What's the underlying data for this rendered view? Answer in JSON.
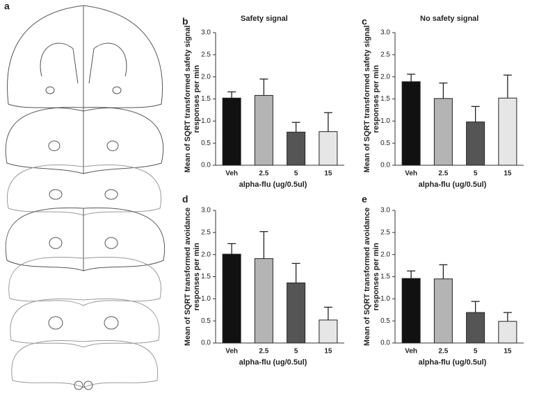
{
  "panel_a": {
    "label": "a"
  },
  "chart_data": [
    {
      "type": "bar",
      "panel_label": "b",
      "title": "Safety signal",
      "y_label": [
        "Mean of SQRT transformed safety signal",
        "responses per min"
      ],
      "x_label": "alpha-flu (ug/0.5ul)",
      "categories": [
        "Veh",
        "2.5",
        "5",
        "15"
      ],
      "values": [
        1.52,
        1.58,
        0.75,
        0.76
      ],
      "errors": [
        0.14,
        0.37,
        0.22,
        0.43
      ],
      "colors": [
        "#111111",
        "#b4b4b4",
        "#555555",
        "#e6e6e6"
      ],
      "ylim": [
        0,
        3
      ],
      "yticks": [
        {
          "value": 0,
          "label": "0.0"
        },
        0.5,
        {
          "value": 1,
          "label": "1.0"
        },
        1.5,
        {
          "value": 2,
          "label": "2.0"
        },
        2.5,
        {
          "value": 3,
          "label": "3.0"
        }
      ]
    },
    {
      "type": "bar",
      "panel_label": "c",
      "title": "No safety signal",
      "y_label": [
        "Mean of SQRT transformed safety signal",
        "responses per min"
      ],
      "x_label": "alpha-flu (ug/0.5ul)",
      "categories": [
        "Veh",
        "2.5",
        "5",
        "15"
      ],
      "values": [
        1.89,
        1.51,
        0.98,
        1.52
      ],
      "errors": [
        0.17,
        0.35,
        0.35,
        0.52
      ],
      "colors": [
        "#111111",
        "#b4b4b4",
        "#555555",
        "#e6e6e6"
      ],
      "ylim": [
        0,
        3
      ],
      "yticks": [
        {
          "value": 0,
          "label": "0.0"
        },
        0.5,
        {
          "value": 1,
          "label": "1.0"
        },
        1.5,
        {
          "value": 2,
          "label": "2.0"
        },
        2.5,
        {
          "value": 3,
          "label": "3.0"
        }
      ]
    },
    {
      "type": "bar",
      "panel_label": "d",
      "y_label": [
        "Mean of SQRT transformed avoidance",
        "responses per min"
      ],
      "x_label": "alpha-flu (ug/0.5ul)",
      "categories": [
        "Veh",
        "2.5",
        "5",
        "15"
      ],
      "values": [
        2.01,
        1.91,
        1.36,
        0.52
      ],
      "errors": [
        0.24,
        0.61,
        0.44,
        0.29
      ],
      "colors": [
        "#111111",
        "#b4b4b4",
        "#555555",
        "#e6e6e6"
      ],
      "ylim": [
        0,
        3
      ],
      "yticks": [
        {
          "value": 0,
          "label": "0.0"
        },
        0.5,
        {
          "value": 1,
          "label": "1.0"
        },
        1.5,
        {
          "value": 2,
          "label": "2.0"
        },
        2.5,
        {
          "value": 3,
          "label": "3.0"
        }
      ]
    },
    {
      "type": "bar",
      "panel_label": "e",
      "y_label": [
        "Mean of SQRT transformed avoidance",
        "responses per min"
      ],
      "x_label": "alpha-flu (ug/0.5ul)",
      "categories": [
        "Veh",
        "2.5",
        "5",
        "15"
      ],
      "values": [
        1.46,
        1.45,
        0.69,
        0.49
      ],
      "errors": [
        0.17,
        0.32,
        0.25,
        0.2
      ],
      "colors": [
        "#111111",
        "#b4b4b4",
        "#555555",
        "#e6e6e6"
      ],
      "ylim": [
        0,
        3
      ],
      "yticks": [
        {
          "value": 0,
          "label": "0.0"
        },
        0.5,
        {
          "value": 1,
          "label": "1.0"
        },
        1.5,
        {
          "value": 2,
          "label": "2.0"
        },
        2.5,
        {
          "value": 3,
          "label": "3.0"
        }
      ]
    }
  ]
}
